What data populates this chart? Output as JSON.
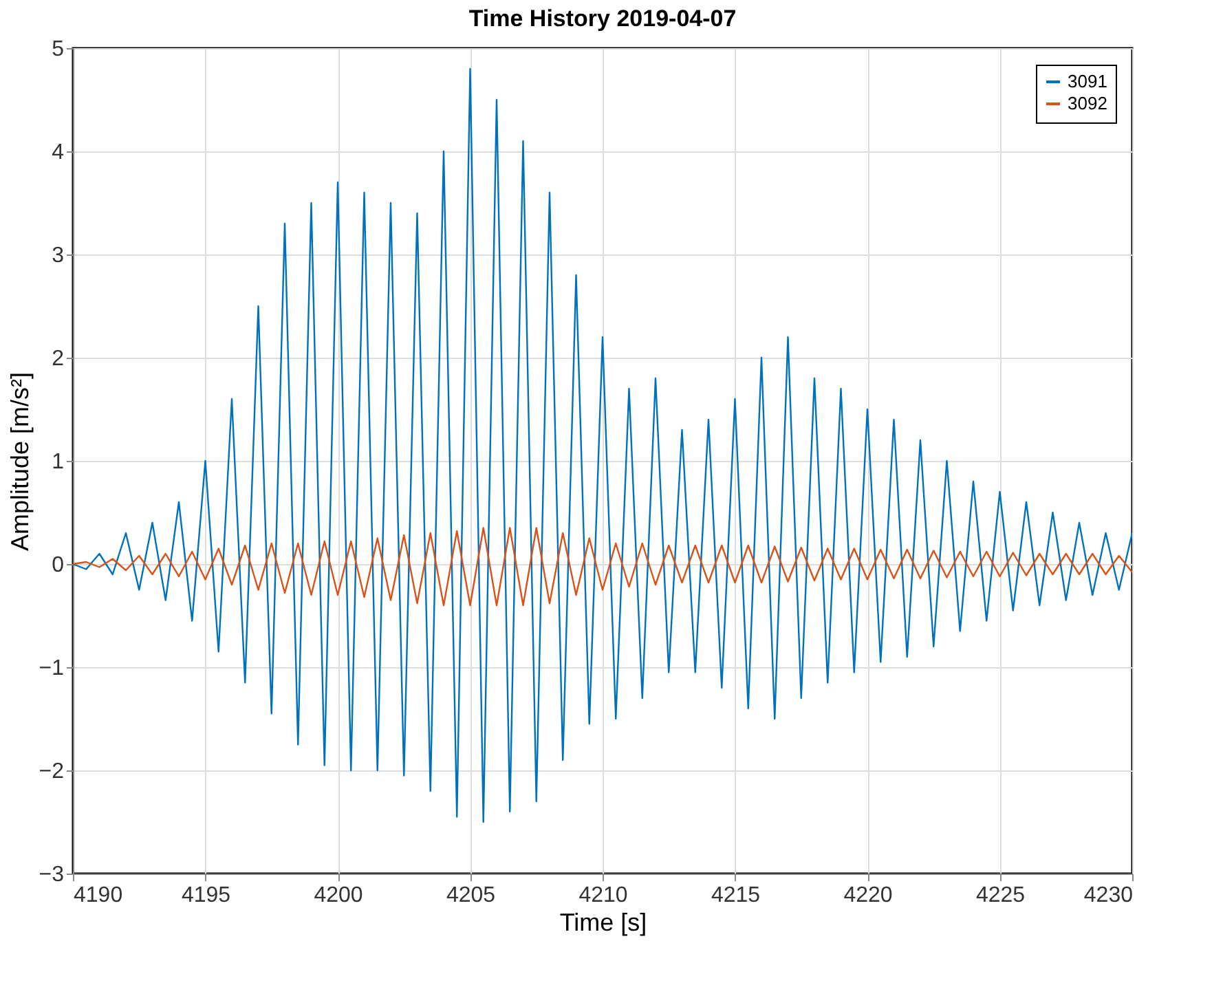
{
  "chart_data": {
    "type": "line",
    "title": "Time History 2019-04-07",
    "xlabel": "Time [s]",
    "ylabel": "Amplitude [m/s²]",
    "x": [
      4190,
      4190.5,
      4191,
      4191.5,
      4192,
      4192.5,
      4193,
      4193.5,
      4194,
      4194.5,
      4195,
      4195.5,
      4196,
      4196.5,
      4197,
      4197.5,
      4198,
      4198.5,
      4199,
      4199.5,
      4200,
      4200.5,
      4201,
      4201.5,
      4202,
      4202.5,
      4203,
      4203.5,
      4204,
      4204.5,
      4205,
      4205.5,
      4206,
      4206.5,
      4207,
      4207.5,
      4208,
      4208.5,
      4209,
      4209.5,
      4210,
      4210.5,
      4211,
      4211.5,
      4212,
      4212.5,
      4213,
      4213.5,
      4214,
      4214.5,
      4215,
      4215.5,
      4216,
      4216.5,
      4217,
      4217.5,
      4218,
      4218.5,
      4219,
      4219.5,
      4220,
      4220.5,
      4221,
      4221.5,
      4222,
      4222.5,
      4223,
      4223.5,
      4224,
      4224.5,
      4225,
      4225.5,
      4226,
      4226.5,
      4227,
      4227.5,
      4228,
      4228.5,
      4229,
      4229.5,
      4230
    ],
    "series": [
      {
        "name": "3091",
        "color": "#0072bd",
        "values": [
          0,
          -0.05,
          0.1,
          -0.1,
          0.3,
          -0.25,
          0.4,
          -0.35,
          0.6,
          -0.55,
          1.0,
          -0.85,
          1.6,
          -1.15,
          2.5,
          -1.45,
          3.3,
          -1.75,
          3.5,
          -1.95,
          3.7,
          -2.0,
          3.6,
          -2.0,
          3.5,
          -2.05,
          3.4,
          -2.2,
          4.0,
          -2.45,
          4.8,
          -2.5,
          4.5,
          -2.4,
          4.1,
          -2.3,
          3.6,
          -1.9,
          2.8,
          -1.55,
          2.2,
          -1.5,
          1.7,
          -1.3,
          1.8,
          -1.05,
          1.3,
          -1.05,
          1.4,
          -1.2,
          1.6,
          -1.4,
          2.0,
          -1.5,
          2.2,
          -1.3,
          1.8,
          -1.15,
          1.7,
          -1.05,
          1.5,
          -0.95,
          1.4,
          -0.9,
          1.2,
          -0.8,
          1.0,
          -0.65,
          0.8,
          -0.55,
          0.7,
          -0.45,
          0.6,
          -0.4,
          0.5,
          -0.35,
          0.4,
          -0.3,
          0.3,
          -0.25,
          0.3
        ]
      },
      {
        "name": "3092",
        "color": "#d95319",
        "values": [
          0,
          0.02,
          -0.03,
          0.05,
          -0.06,
          0.08,
          -0.1,
          0.1,
          -0.12,
          0.12,
          -0.15,
          0.15,
          -0.2,
          0.18,
          -0.25,
          0.2,
          -0.28,
          0.2,
          -0.3,
          0.22,
          -0.3,
          0.22,
          -0.32,
          0.25,
          -0.35,
          0.28,
          -0.38,
          0.3,
          -0.4,
          0.32,
          -0.4,
          0.35,
          -0.4,
          0.35,
          -0.4,
          0.35,
          -0.38,
          0.3,
          -0.3,
          0.25,
          -0.25,
          0.2,
          -0.22,
          0.2,
          -0.2,
          0.18,
          -0.18,
          0.18,
          -0.18,
          0.18,
          -0.18,
          0.18,
          -0.18,
          0.17,
          -0.17,
          0.16,
          -0.16,
          0.15,
          -0.15,
          0.15,
          -0.15,
          0.14,
          -0.14,
          0.14,
          -0.14,
          0.13,
          -0.13,
          0.12,
          -0.12,
          0.12,
          -0.12,
          0.11,
          -0.11,
          0.1,
          -0.1,
          0.1,
          -0.1,
          0.1,
          -0.1,
          0.08,
          -0.08
        ]
      }
    ],
    "xlim": [
      4190,
      4230
    ],
    "xticks": [
      4190,
      4195,
      4200,
      4205,
      4210,
      4215,
      4220,
      4225,
      4230
    ],
    "ylim": [
      -3,
      5
    ],
    "yticks": [
      -3,
      -2,
      -1,
      0,
      1,
      2,
      3,
      4,
      5
    ],
    "grid": true,
    "legend": "top right",
    "marker": "none",
    "line_style": "solid"
  }
}
